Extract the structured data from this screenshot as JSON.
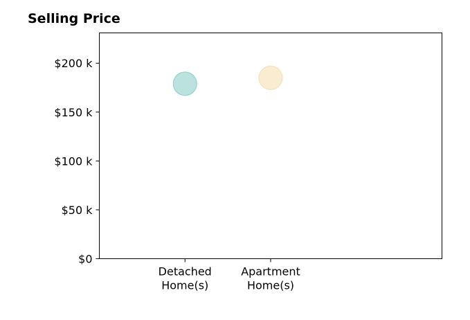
{
  "chart_data": {
    "type": "scatter",
    "title": "Selling Price",
    "categories": [
      "Detached\nHome(s)",
      "Apartment\nHome(s)"
    ],
    "values": [
      179000,
      185000
    ],
    "point_colors": [
      "#8ecfc9",
      "#f5dfb0"
    ],
    "point_edge_colors": [
      "#6fbfb8",
      "#efd49c"
    ],
    "ylim": [
      0,
      231000
    ],
    "yticks": [
      0,
      50000,
      100000,
      150000,
      200000
    ],
    "ytick_labels": [
      "$0",
      "$50 k",
      "$100 k",
      "$150 k",
      "$200 k"
    ],
    "xlabel": "",
    "ylabel": "",
    "grid": false
  }
}
